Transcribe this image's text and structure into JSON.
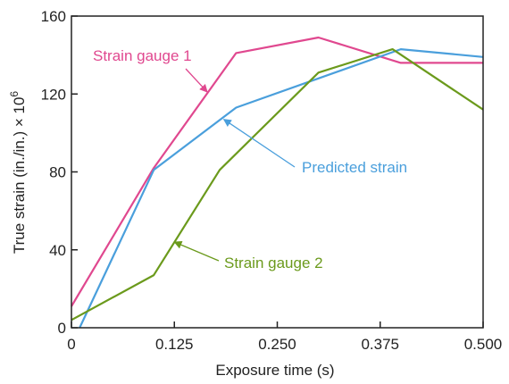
{
  "chart_data": {
    "type": "line",
    "title": "",
    "xlabel": "Exposure time (s)",
    "ylabel": "True strain (in./in.) × 10",
    "ylabel_exponent": "6",
    "xlim": [
      0,
      0.5
    ],
    "ylim": [
      0,
      160
    ],
    "xticks": [
      0,
      0.125,
      0.25,
      0.375,
      0.5
    ],
    "xtick_labels": [
      "0",
      "0.125",
      "0.250",
      "0.375",
      "0.500"
    ],
    "yticks": [
      0,
      40,
      80,
      120,
      160
    ],
    "ytick_labels": [
      "0",
      "40",
      "80",
      "120",
      "160"
    ],
    "grid": false,
    "legend": "none (series labeled with arrow annotations)",
    "series": [
      {
        "name": "Strain gauge 1",
        "color": "#e0488f",
        "x": [
          0,
          0.1,
          0.2,
          0.3,
          0.4,
          0.5
        ],
        "y": [
          11,
          82,
          141,
          149,
          136,
          136
        ]
      },
      {
        "name": "Predicted strain",
        "color": "#4a9fdc",
        "x": [
          0.01,
          0.1,
          0.2,
          0.3,
          0.4,
          0.5
        ],
        "y": [
          0,
          81,
          113,
          128,
          143,
          139
        ]
      },
      {
        "name": "Strain gauge 2",
        "color": "#6b9a1c",
        "x": [
          0,
          0.1,
          0.18,
          0.3,
          0.39,
          0.5
        ],
        "y": [
          4,
          27,
          81,
          131,
          143,
          112
        ]
      }
    ],
    "annotations": [
      {
        "text": "Strain gauge 1",
        "series_index": 0,
        "arrow_to": [
          0.165,
          121
        ]
      },
      {
        "text": "Predicted strain",
        "series_index": 1,
        "arrow_to": [
          0.185,
          107
        ]
      },
      {
        "text": "Strain gauge 2",
        "series_index": 2,
        "arrow_to": [
          0.125,
          44
        ]
      }
    ]
  }
}
